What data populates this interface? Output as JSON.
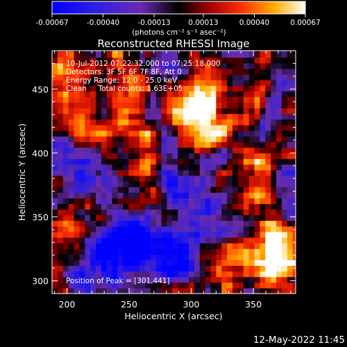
{
  "chart_data": {
    "type": "heatmap",
    "title": "Reconstructed RHESSI Image",
    "xlabel": "Heliocentric X (arcsec)",
    "ylabel": "Heliocentric Y (arcsec)",
    "xlim": [
      188,
      384
    ],
    "ylim": [
      290,
      480
    ],
    "x_ticks": [
      200,
      250,
      300,
      350
    ],
    "y_ticks": [
      300,
      350,
      400,
      450
    ],
    "colorbar": {
      "range": [
        -0.00067,
        0.00067
      ],
      "tick_values": [
        -0.00067,
        -0.0004,
        -0.00013,
        0.00013,
        0.0004,
        0.00067
      ],
      "tick_labels": [
        "-0.00067",
        "-0.00040",
        "-0.00013",
        "0.00013",
        "0.00040",
        "0.00067"
      ],
      "units": "(photons cm⁻² s⁻¹ asec⁻²)"
    },
    "annotations": [
      "10-Jul-2012 07:22:32.000 to 07:25:18.000",
      "Detectors: 3F 5F 6F 7F 8F, Att 0",
      "Energy Range: 12.0 - 25.0 keV",
      "Clean     Total counts: 1.63E+05"
    ],
    "peak_label": "Position of Peak = [301,441]",
    "peak": [
      301,
      441
    ],
    "bright_sources": [
      {
        "x": 301,
        "y": 441,
        "intensity": 1.0
      },
      {
        "x": 312,
        "y": 425,
        "intensity": 0.85
      },
      {
        "x": 200,
        "y": 455,
        "intensity": 0.8
      },
      {
        "x": 365,
        "y": 330,
        "intensity": 0.85
      },
      {
        "x": 372,
        "y": 305,
        "intensity": 0.7
      },
      {
        "x": 350,
        "y": 378,
        "intensity": 0.65
      },
      {
        "x": 260,
        "y": 395,
        "intensity": 0.55
      },
      {
        "x": 225,
        "y": 420,
        "intensity": 0.5
      },
      {
        "x": 330,
        "y": 300,
        "intensity": 0.45
      },
      {
        "x": 205,
        "y": 340,
        "intensity": 0.5
      },
      {
        "x": 245,
        "y": 455,
        "intensity": 0.45
      },
      {
        "x": 340,
        "y": 455,
        "intensity": 0.5
      }
    ],
    "dark_regions": [
      {
        "x": 260,
        "y": 330,
        "intensity": -1.0
      },
      {
        "x": 290,
        "y": 325,
        "intensity": -0.8
      },
      {
        "x": 225,
        "y": 325,
        "intensity": -0.7
      },
      {
        "x": 300,
        "y": 375,
        "intensity": -0.6
      },
      {
        "x": 215,
        "y": 385,
        "intensity": -0.6
      },
      {
        "x": 230,
        "y": 300,
        "intensity": -0.5
      }
    ]
  },
  "footer": {
    "date": "12-May-2022 11:45"
  }
}
